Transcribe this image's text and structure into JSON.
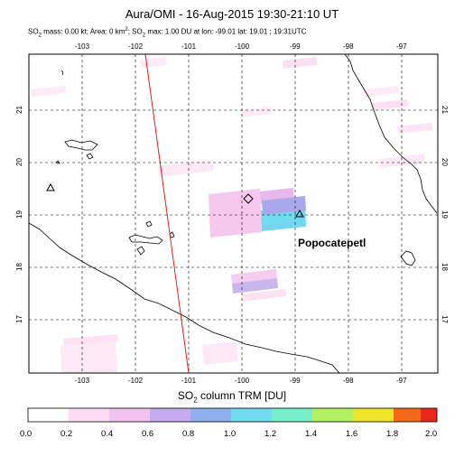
{
  "header": {
    "title": "Aura/OMI - 16-Aug-2015 19:30-21:10 UT",
    "subtitle_so2": "SO",
    "subtitle_sub": "2",
    "subtitle_text": " mass: 0.00 kt; Area: 0 km",
    "subtitle_sup": "2",
    "subtitle_tail": "; SO",
    "subtitle_sub2": "2",
    "subtitle_end": " max: 1.00 DU at lon: -99.01 lat: 19.01 ; 19:31UTC"
  },
  "map": {
    "volcano_label": "Popocatepetl",
    "lon_ticks": [
      "-103",
      "-102",
      "-101",
      "-100",
      "-99",
      "-98",
      "-97"
    ],
    "lat_ticks": [
      "21",
      "20",
      "19",
      "18",
      "17"
    ],
    "lon_range": [
      -104,
      -96.9
    ],
    "lat_range": [
      15.9,
      22.0
    ],
    "volcanoes": [
      {
        "name": "volcano-west",
        "lon": -103.62,
        "lat": 19.51
      },
      {
        "name": "volcano-nevado-de-toluca",
        "lon": -99.76,
        "lat": 19.11
      },
      {
        "name": "volcano-popocatepetl",
        "lon": -98.62,
        "lat": 19.02
      }
    ],
    "max_marker": {
      "lon": -99.01,
      "lat": 19.01
    }
  },
  "colorbar": {
    "title_prefix": "SO",
    "title_sub": "2",
    "title_suffix": " column TRM [DU]",
    "tick_labels": [
      "0.0",
      "0.2",
      "0.4",
      "0.6",
      "0.8",
      "1.0",
      "1.2",
      "1.4",
      "1.6",
      "1.8",
      "2.0"
    ],
    "range": [
      0,
      2
    ],
    "colors": [
      "#ffffff",
      "#fbd9f2",
      "#f1c2f2",
      "#d0a5ee",
      "#9fa0ea",
      "#7fc6ef",
      "#6fe8ef",
      "#8ff0a8",
      "#d6f040",
      "#f4c419",
      "#f25a12",
      "#e8281b"
    ]
  }
}
